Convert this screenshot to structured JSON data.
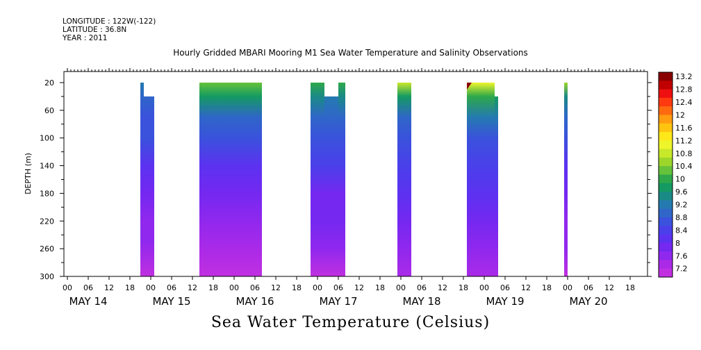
{
  "header": {
    "longitude": "LONGITUDE : 122W(-122)",
    "latitude": "LATITUDE : 36.8N",
    "year": "YEAR : 2011"
  },
  "chart_data": {
    "type": "heatmap",
    "title": "Hourly Gridded MBARI Mooring M1 Sea Water Temperature and Salinity Observations",
    "bottom_title": "Sea Water Temperature (Celsius)",
    "ylabel": "DEPTH (m)",
    "y_ticks": [
      20,
      60,
      100,
      140,
      180,
      220,
      260,
      300
    ],
    "ylim": [
      300,
      4
    ],
    "x_hour_labels": [
      "00",
      "06",
      "12",
      "18",
      "00",
      "06",
      "12",
      "18",
      "00",
      "06",
      "12",
      "18",
      "00",
      "06",
      "12",
      "18",
      "00",
      "06",
      "12",
      "18",
      "00",
      "06",
      "12",
      "18",
      "00",
      "06",
      "12",
      "18"
    ],
    "x_day_labels": [
      "MAY 14",
      "MAY 15",
      "MAY 16",
      "MAY 17",
      "MAY 18",
      "MAY 19",
      "MAY 20"
    ],
    "xlim_hours": [
      -1,
      167
    ],
    "colorbar": {
      "labels": [
        "13.2",
        "12.8",
        "12.4",
        "12",
        "11.6",
        "11.2",
        "10.8",
        "10.4",
        "10",
        "9.6",
        "9.2",
        "8.8",
        "8.4",
        "8",
        "7.6",
        "7.2"
      ],
      "colors": [
        "#8a0000",
        "#c00000",
        "#ee1010",
        "#ff3a10",
        "#ff6a10",
        "#ff9c10",
        "#ffc410",
        "#ffe81a",
        "#eef52a",
        "#c8e82a",
        "#9cd62a",
        "#66c23a",
        "#2ea84a",
        "#149a62",
        "#1a8a86",
        "#247ab0",
        "#2f66c8",
        "#3a52dc",
        "#4a40ea",
        "#5c32f0",
        "#7428f0",
        "#9028ee",
        "#aa2ae8",
        "#c030e0"
      ]
    },
    "data_blocks": [
      {
        "start_hour": 21,
        "end_hour": 22,
        "top_depth": 20,
        "profile": [
          [
            20,
            9.4
          ],
          [
            40,
            9.1
          ],
          [
            70,
            8.9
          ],
          [
            100,
            8.8
          ],
          [
            140,
            8.3
          ],
          [
            180,
            8.1
          ],
          [
            220,
            7.9
          ],
          [
            250,
            7.7
          ],
          [
            300,
            7.3
          ]
        ]
      },
      {
        "start_hour": 22,
        "end_hour": 25,
        "top_depth": 40,
        "profile": [
          [
            40,
            9.1
          ],
          [
            70,
            8.9
          ],
          [
            100,
            8.8
          ],
          [
            140,
            8.3
          ],
          [
            180,
            8.1
          ],
          [
            220,
            7.9
          ],
          [
            250,
            7.7
          ],
          [
            300,
            7.3
          ]
        ]
      },
      {
        "start_hour": 38,
        "end_hour": 56,
        "top_depth": 20,
        "profile": [
          [
            20,
            10.4
          ],
          [
            40,
            9.8
          ],
          [
            70,
            9.2
          ],
          [
            100,
            8.8
          ],
          [
            140,
            8.4
          ],
          [
            180,
            8.1
          ],
          [
            220,
            7.9
          ],
          [
            260,
            7.6
          ],
          [
            300,
            7.3
          ]
        ]
      },
      {
        "start_hour": 70,
        "end_hour": 74,
        "top_depth": 20,
        "profile": [
          [
            20,
            10.2
          ],
          [
            40,
            9.5
          ],
          [
            70,
            9.0
          ],
          [
            100,
            8.8
          ],
          [
            140,
            8.5
          ],
          [
            180,
            8.2
          ],
          [
            220,
            8.0
          ],
          [
            260,
            7.8
          ],
          [
            300,
            7.4
          ]
        ]
      },
      {
        "start_hour": 74,
        "end_hour": 78,
        "top_depth": 40,
        "profile": [
          [
            40,
            9.4
          ],
          [
            70,
            9.0
          ],
          [
            100,
            8.8
          ],
          [
            140,
            8.5
          ],
          [
            180,
            8.2
          ],
          [
            220,
            8.0
          ],
          [
            260,
            7.8
          ],
          [
            300,
            7.4
          ]
        ]
      },
      {
        "start_hour": 78,
        "end_hour": 80,
        "top_depth": 20,
        "profile": [
          [
            20,
            10.2
          ],
          [
            40,
            9.5
          ],
          [
            70,
            9.0
          ],
          [
            100,
            8.8
          ],
          [
            140,
            8.5
          ],
          [
            180,
            8.2
          ],
          [
            220,
            8.0
          ],
          [
            260,
            7.8
          ],
          [
            300,
            7.4
          ]
        ]
      },
      {
        "start_hour": 95,
        "end_hour": 99,
        "top_depth": 20,
        "profile": [
          [
            20,
            10.9
          ],
          [
            40,
            9.8
          ],
          [
            70,
            9.2
          ],
          [
            100,
            8.8
          ],
          [
            140,
            8.5
          ],
          [
            180,
            8.3
          ],
          [
            220,
            8.0
          ],
          [
            260,
            7.8
          ],
          [
            300,
            7.5
          ]
        ]
      },
      {
        "start_hour": 115,
        "end_hour": 123,
        "top_depth": 20,
        "profile": [
          [
            20,
            11.0
          ],
          [
            40,
            10.0
          ],
          [
            70,
            9.4
          ],
          [
            100,
            8.9
          ],
          [
            140,
            8.6
          ],
          [
            180,
            8.3
          ],
          [
            220,
            8.1
          ],
          [
            260,
            7.8
          ],
          [
            300,
            7.5
          ]
        ]
      },
      {
        "start_hour": 123,
        "end_hour": 124,
        "top_depth": 40,
        "profile": [
          [
            40,
            9.9
          ],
          [
            70,
            9.3
          ],
          [
            100,
            8.9
          ],
          [
            140,
            8.6
          ],
          [
            180,
            8.3
          ],
          [
            220,
            8.1
          ],
          [
            260,
            7.8
          ],
          [
            300,
            7.5
          ]
        ]
      },
      {
        "start_hour": 143,
        "end_hour": 144,
        "top_depth": 20,
        "profile": [
          [
            20,
            10.6
          ],
          [
            40,
            9.6
          ],
          [
            70,
            9.0
          ],
          [
            100,
            8.8
          ],
          [
            140,
            8.3
          ],
          [
            180,
            8.1
          ],
          [
            220,
            7.9
          ],
          [
            260,
            7.7
          ],
          [
            300,
            7.4
          ]
        ]
      }
    ],
    "hotspot": {
      "hour": 115,
      "depth": 20,
      "value": 13.0
    }
  }
}
